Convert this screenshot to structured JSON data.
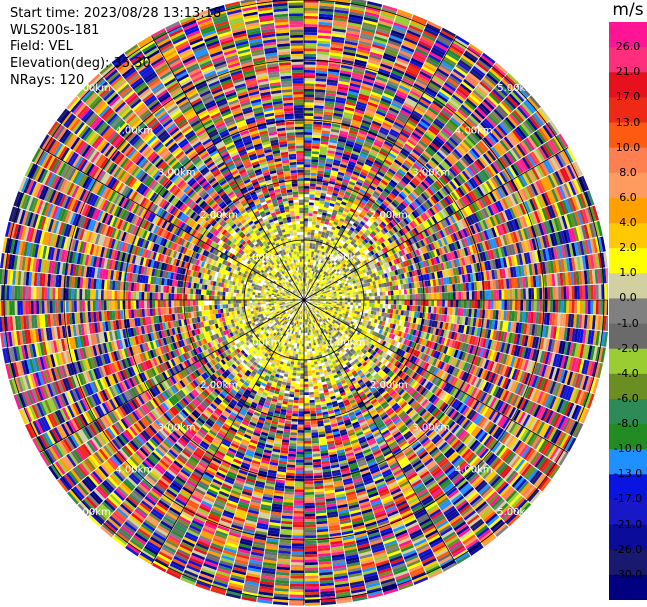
{
  "meta": {
    "start_time": "Start time: 2023/08/28 13:13:18",
    "instrument": "WLS200s-181",
    "field": "Field: VEL",
    "elevation": "Elevation(deg): 35.30",
    "nrays": "NRays: 120"
  },
  "chart_data": {
    "type": "heatmap",
    "projection": "polar (PPI scan)",
    "field": "VEL",
    "nrays": 120,
    "elevation_deg": 35.3,
    "range_rings_km": [
      1.0,
      2.0,
      3.0,
      4.0,
      5.0
    ],
    "ring_labels": [
      "1.00km",
      "2.00km",
      "3.00km",
      "4.00km",
      "5.00km"
    ],
    "spokes_deg": [
      0,
      30,
      60,
      90,
      120,
      150,
      180,
      210,
      240,
      270,
      300,
      330
    ],
    "colorbar": {
      "unit": "m/s",
      "ticks": [
        "26.0",
        "21.0",
        "17.0",
        "13.0",
        "10.0",
        "8.0",
        "6.0",
        "4.0",
        "2.0",
        "1.0",
        "0.0",
        "-1.0",
        "-2.0",
        "-4.0",
        "-6.0",
        "-8.0",
        "-10.0",
        "-13.0",
        "-17.0",
        "-21.0",
        "-26.0",
        "-30.0"
      ],
      "colors": [
        "#ff1493",
        "#ff2f7e",
        "#e8101c",
        "#ee2a16",
        "#ff5a12",
        "#ff7f50",
        "#ff9b5f",
        "#ff9f00",
        "#ffc800",
        "#ffff00",
        "#d0d0a0",
        "#808080",
        "#6a6a6a",
        "#9acd32",
        "#6b8e23",
        "#2e8b57",
        "#228b22",
        "#1e90ff",
        "#0a14e0",
        "#1818c8",
        "#0c0c9a",
        "#191970",
        "#000080"
      ]
    }
  }
}
